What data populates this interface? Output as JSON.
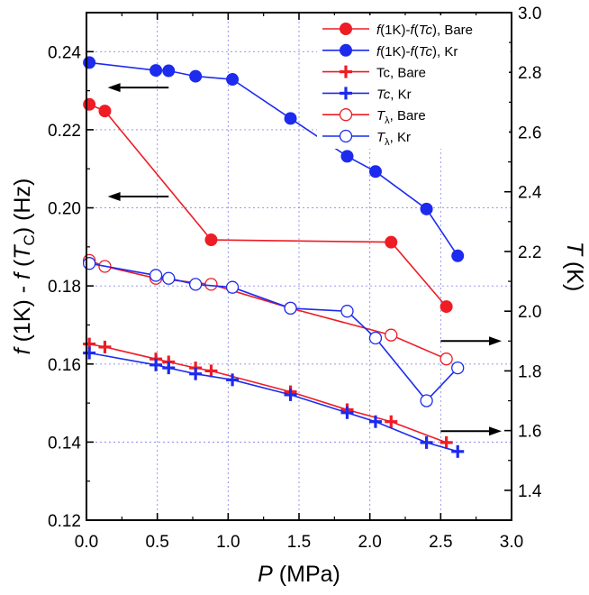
{
  "chart_data": {
    "type": "line",
    "title": "",
    "xlabel": {
      "italic": "P",
      "rest": " (MPa)"
    },
    "ylabel_left": {
      "p1": "f",
      "p2": " (1K) - ",
      "p3": "f",
      "p4": " (",
      "p5": "T",
      "p6": "C",
      "p7": ") (Hz)"
    },
    "ylabel_right": {
      "p1": "T",
      "p2": " (K)"
    },
    "xlim": [
      0.0,
      3.0
    ],
    "ylim_left": [
      0.12,
      0.25
    ],
    "ylim_right": [
      1.3,
      3.0
    ],
    "x_ticks": [
      "0.0",
      "0.5",
      "1.0",
      "1.5",
      "2.0",
      "2.5",
      "3.0"
    ],
    "y_left_ticks": [
      "0.12",
      "0.14",
      "0.16",
      "0.18",
      "0.20",
      "0.22",
      "0.24"
    ],
    "y_right_ticks": [
      "1.4",
      "1.6",
      "1.8",
      "2.0",
      "2.2",
      "2.4",
      "2.6",
      "2.8",
      "3.0"
    ],
    "grid": true,
    "legend_position": "top-right",
    "legend": [
      {
        "series": "f_bare",
        "parts": [
          "f",
          "(1K)-",
          "f",
          "(",
          "Tc",
          "), Bare"
        ],
        "italic": [
          true,
          false,
          true,
          false,
          true,
          false
        ]
      },
      {
        "series": "f_kr",
        "parts": [
          "f",
          "(1K)-",
          "f",
          "(",
          "Tc",
          "), Kr"
        ],
        "italic": [
          true,
          false,
          true,
          false,
          true,
          false
        ]
      },
      {
        "series": "tc_bare",
        "parts": [
          "Tc, Bare"
        ],
        "italic": [
          false
        ]
      },
      {
        "series": "tc_kr",
        "parts": [
          "Tc",
          ", Kr"
        ],
        "italic": [
          true,
          false
        ]
      },
      {
        "series": "tl_bare",
        "parts": [
          "T",
          "λ",
          ", Bare"
        ],
        "italic": [
          true,
          false,
          false
        ],
        "sub": [
          false,
          true,
          false
        ]
      },
      {
        "series": "tl_kr",
        "parts": [
          "T",
          "λ",
          ", Kr"
        ],
        "italic": [
          true,
          false,
          false
        ],
        "sub": [
          false,
          true,
          false
        ]
      }
    ],
    "series": [
      {
        "id": "f_bare",
        "name": "f(1K)-f(Tc), Bare",
        "axis": "left",
        "color": "#ee1c25",
        "marker": "filled-circle",
        "x": [
          0.02,
          0.13,
          0.88,
          2.15,
          2.54
        ],
        "y": [
          0.2265,
          0.2248,
          0.1918,
          0.1912,
          0.1747
        ]
      },
      {
        "id": "f_kr",
        "name": "f(1K)-f(Tc), Kr",
        "axis": "left",
        "color": "#1c2bee",
        "marker": "filled-circle",
        "x": [
          0.02,
          0.49,
          0.58,
          0.77,
          1.03,
          1.44,
          1.84,
          2.04,
          2.4,
          2.62
        ],
        "y": [
          0.2372,
          0.2352,
          0.2351,
          0.2337,
          0.2329,
          0.2229,
          0.2132,
          0.2093,
          0.1997,
          0.1877
        ]
      },
      {
        "id": "tc_bare",
        "name": "Tc, Bare",
        "axis": "right",
        "color": "#ee1c25",
        "marker": "plus",
        "x": [
          0.02,
          0.13,
          0.49,
          0.58,
          0.77,
          0.88,
          1.44,
          1.84,
          2.15,
          2.54
        ],
        "y": [
          1.89,
          1.88,
          1.84,
          1.83,
          1.81,
          1.8,
          1.73,
          1.67,
          1.63,
          1.56
        ]
      },
      {
        "id": "tc_kr",
        "name": "Tc, Kr",
        "axis": "right",
        "color": "#1c2bee",
        "marker": "plus",
        "x": [
          0.02,
          0.49,
          0.58,
          0.77,
          1.03,
          1.44,
          1.84,
          2.04,
          2.4,
          2.62
        ],
        "y": [
          1.86,
          1.82,
          1.81,
          1.79,
          1.77,
          1.72,
          1.66,
          1.63,
          1.56,
          1.53
        ]
      },
      {
        "id": "tl_bare",
        "name": "Tλ, Bare",
        "axis": "right",
        "color": "#ee1c25",
        "marker": "open-circle",
        "x": [
          0.02,
          0.13,
          0.49,
          0.88,
          1.44,
          2.15,
          2.54
        ],
        "y": [
          2.17,
          2.15,
          2.11,
          2.09,
          2.01,
          1.92,
          1.84
        ]
      },
      {
        "id": "tl_kr",
        "name": "Tλ, Kr",
        "axis": "right",
        "color": "#1c2bee",
        "marker": "open-circle",
        "x": [
          0.02,
          0.49,
          0.58,
          0.77,
          1.03,
          1.44,
          1.84,
          2.04,
          2.4,
          2.62
        ],
        "y": [
          2.16,
          2.12,
          2.11,
          2.09,
          2.08,
          2.01,
          2.0,
          1.91,
          1.7,
          1.81
        ]
      }
    ],
    "annotations": [
      {
        "type": "arrow",
        "direction": "left",
        "points_to": "left-axis",
        "at_x": [
          0.15,
          0.58
        ],
        "at_y_left": 0.2308
      },
      {
        "type": "arrow",
        "direction": "left",
        "points_to": "left-axis",
        "at_x": [
          0.15,
          0.58
        ],
        "at_y_left": 0.2029
      },
      {
        "type": "arrow",
        "direction": "right",
        "points_to": "right-axis",
        "at_x": [
          2.5,
          2.93
        ],
        "at_y_right": 1.9
      },
      {
        "type": "arrow",
        "direction": "right",
        "points_to": "right-axis",
        "at_x": [
          2.5,
          2.93
        ],
        "at_y_right": 1.598
      }
    ]
  }
}
